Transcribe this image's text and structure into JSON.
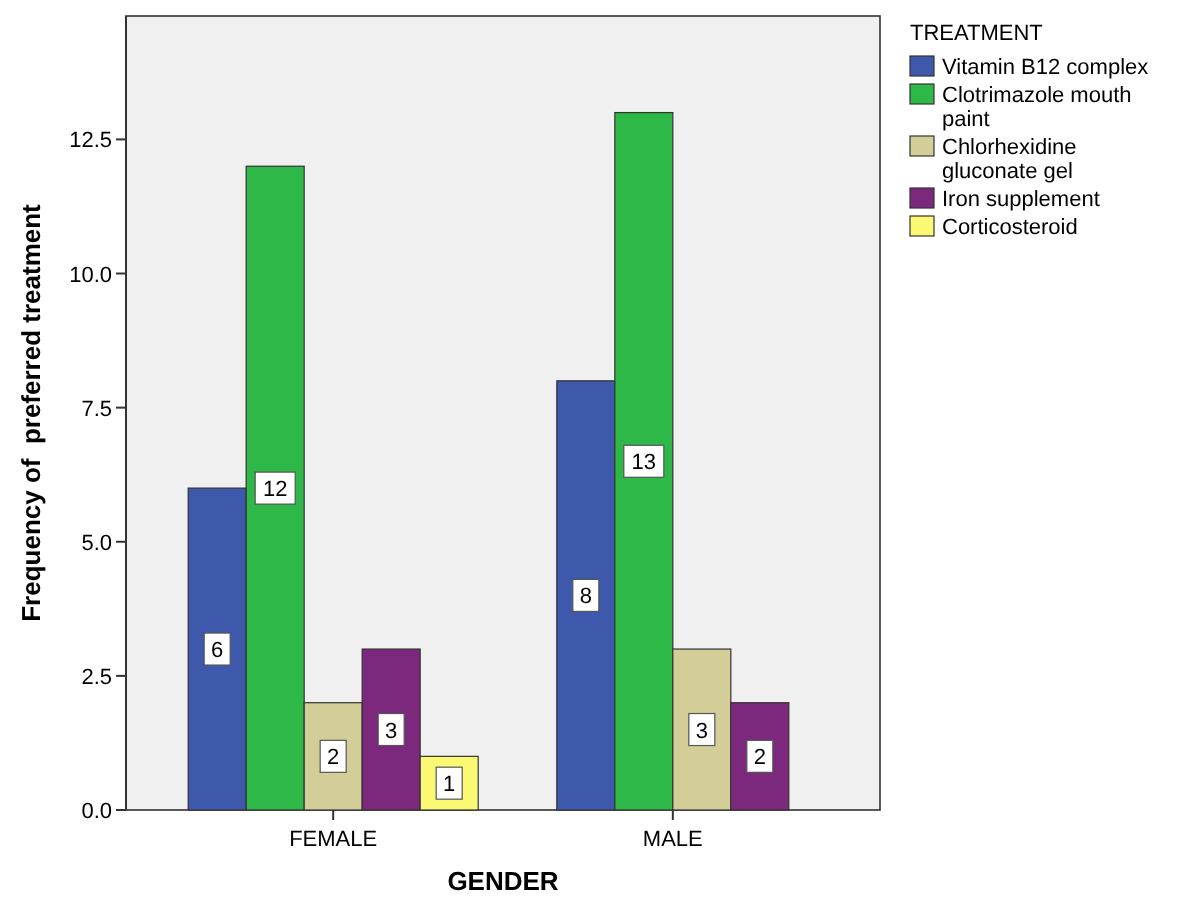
{
  "chart_data": {
    "type": "bar",
    "xlabel": "GENDER",
    "ylabel": "Frequency of  preferred treatment",
    "legend_title": "TREATMENT",
    "categories": [
      "FEMALE",
      "MALE"
    ],
    "series": [
      {
        "name": "Vitamin B12 complex",
        "color": "#3e58ac",
        "values": [
          6,
          8
        ]
      },
      {
        "name": "Clotrimazole mouth paint",
        "color": "#2eb848",
        "values": [
          12,
          13
        ]
      },
      {
        "name": "Chlorhexidine gluconate gel",
        "color": "#d3ce97",
        "values": [
          2,
          3
        ]
      },
      {
        "name": "Iron supplement",
        "color": "#7c287d",
        "values": [
          3,
          2
        ]
      },
      {
        "name": "Corticosteroid",
        "color": "#fbf873",
        "values": [
          1,
          null
        ]
      }
    ],
    "ylim": [
      0,
      14.8
    ],
    "yticks": [
      {
        "value": 0,
        "label": "0.0"
      },
      {
        "value": 2.5,
        "label": "2.5"
      },
      {
        "value": 5,
        "label": "5.0"
      },
      {
        "value": 7.5,
        "label": "7.5"
      },
      {
        "value": 10,
        "label": "10.0"
      },
      {
        "value": 12.5,
        "label": "12.5"
      }
    ],
    "data_labels": true,
    "legend": "right",
    "grid": false
  }
}
